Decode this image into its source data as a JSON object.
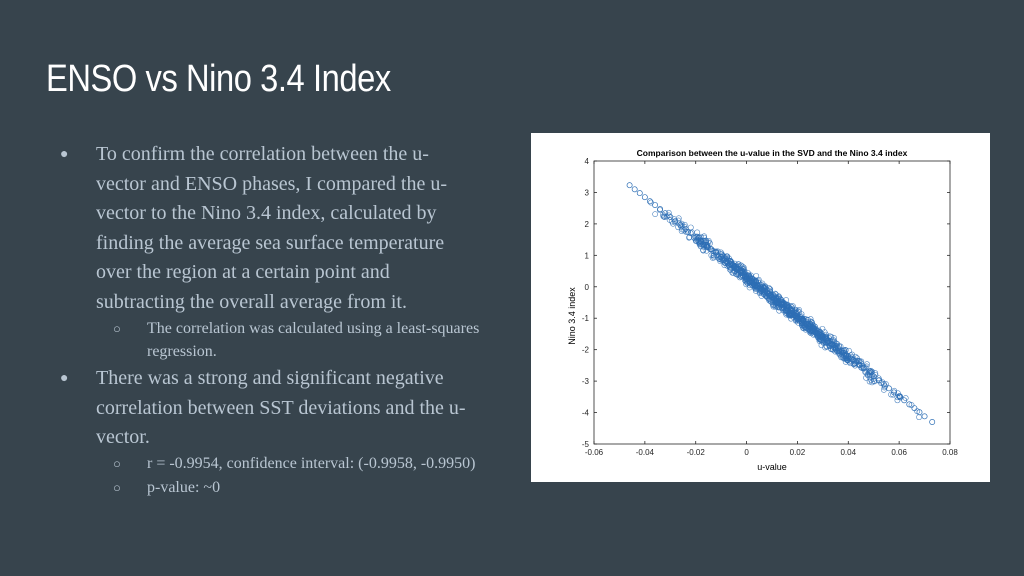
{
  "slide": {
    "title": "ENSO vs Nino 3.4 Index",
    "bullets": [
      {
        "text_lines": [
          "To confirm the correlation between the u-",
          "vector and ENSO phases, I compared the u-",
          "vector to the Nino 3.4 index, calculated by",
          "finding the average sea surface temperature",
          "over the region at a certain point and",
          "subtracting the overall average from it."
        ],
        "subbullets": [
          {
            "text_lines": [
              "The correlation was calculated using a least-squares",
              "regression."
            ]
          }
        ]
      },
      {
        "text_lines": [
          "There was a strong and significant negative",
          "correlation between SST deviations and the u-",
          "vector."
        ],
        "subbullets": [
          {
            "text_lines": [
              "r = -0.9954, confidence interval: (-0.9958, -0.9950)"
            ]
          },
          {
            "text_lines": [
              "p-value: ~0"
            ]
          }
        ]
      }
    ],
    "bullet_symbol": "●",
    "subbullet_symbol": "○"
  },
  "chart_data": {
    "type": "scatter",
    "title": "Comparison between the u-value in the SVD and the Nino 3.4 index",
    "xlabel": "u-value",
    "ylabel": "Nino 3.4 index",
    "xlim": [
      -0.06,
      0.08
    ],
    "ylim": [
      -5,
      4
    ],
    "xticks": [
      "-0.06",
      "-0.04",
      "-0.02",
      "0",
      "0.02",
      "0.04",
      "0.06",
      "0.08"
    ],
    "yticks": [
      "-5",
      "-4",
      "-3",
      "-2",
      "-1",
      "0",
      "1",
      "2",
      "3",
      "4"
    ],
    "grid": false,
    "marker": "open circle",
    "marker_color": "#2e6fb5",
    "trend": {
      "slope": -63.5,
      "intercept": 0.3,
      "x_range": [
        -0.046,
        0.073
      ],
      "spread": 0.15
    },
    "points": [
      [
        -0.046,
        3.23
      ],
      [
        -0.044,
        3.1
      ],
      [
        -0.042,
        2.98
      ],
      [
        -0.04,
        2.85
      ],
      [
        -0.038,
        2.72
      ],
      [
        -0.036,
        2.6
      ],
      [
        -0.034,
        2.47
      ],
      [
        -0.032,
        2.34
      ],
      [
        -0.03,
        2.22
      ],
      [
        -0.028,
        2.09
      ],
      [
        -0.026,
        1.96
      ],
      [
        -0.024,
        1.84
      ],
      [
        -0.022,
        1.71
      ],
      [
        -0.02,
        1.58
      ],
      [
        -0.018,
        1.46
      ],
      [
        -0.016,
        1.33
      ],
      [
        -0.014,
        1.2
      ],
      [
        -0.012,
        1.08
      ],
      [
        -0.01,
        0.95
      ],
      [
        -0.008,
        0.82
      ],
      [
        -0.006,
        0.7
      ],
      [
        -0.004,
        0.57
      ],
      [
        -0.002,
        0.44
      ],
      [
        0,
        0.32
      ],
      [
        0.002,
        0.19
      ],
      [
        0.004,
        0.06
      ],
      [
        0.006,
        -0.06
      ],
      [
        0.008,
        -0.19
      ],
      [
        0.01,
        -0.32
      ],
      [
        0.012,
        -0.44
      ],
      [
        0.014,
        -0.57
      ],
      [
        0.016,
        -0.7
      ],
      [
        0.018,
        -0.82
      ],
      [
        0.02,
        -0.95
      ],
      [
        0.022,
        -1.08
      ],
      [
        0.024,
        -1.2
      ],
      [
        0.026,
        -1.33
      ],
      [
        0.028,
        -1.46
      ],
      [
        0.03,
        -1.58
      ],
      [
        0.032,
        -1.71
      ],
      [
        0.034,
        -1.84
      ],
      [
        0.036,
        -1.96
      ],
      [
        0.038,
        -2.09
      ],
      [
        0.04,
        -2.22
      ],
      [
        0.042,
        -2.34
      ],
      [
        0.044,
        -2.47
      ],
      [
        0.046,
        -2.6
      ],
      [
        0.048,
        -2.72
      ],
      [
        0.05,
        -2.85
      ],
      [
        0.052,
        -2.98
      ],
      [
        0.054,
        -3.1
      ],
      [
        0.056,
        -3.23
      ],
      [
        0.058,
        -3.36
      ],
      [
        0.06,
        -3.48
      ],
      [
        0.062,
        -3.61
      ],
      [
        0.064,
        -3.74
      ],
      [
        0.066,
        -3.86
      ],
      [
        0.068,
        -3.99
      ],
      [
        0.07,
        -4.12
      ],
      [
        0.073,
        -4.3
      ]
    ]
  }
}
